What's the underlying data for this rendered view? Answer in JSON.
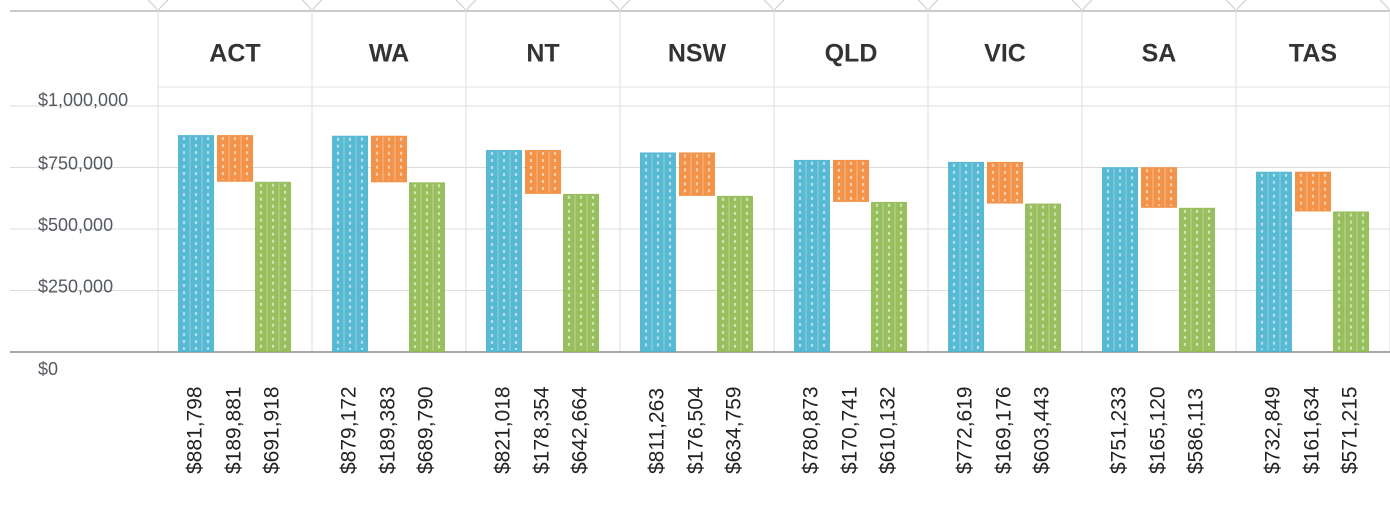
{
  "chart_data": {
    "type": "bar",
    "categories": [
      "ACT",
      "WA",
      "NT",
      "NSW",
      "QLD",
      "VIC",
      "SA",
      "TAS"
    ],
    "series": [
      {
        "values": [
          881798,
          879172,
          821018,
          811263,
          780873,
          772619,
          751233,
          732849
        ],
        "labels": [
          "$881,798",
          "$879,172",
          "$821,018",
          "$811,263",
          "$780,873",
          "$772,619",
          "$751,233",
          "$732,849"
        ]
      },
      {
        "values": [
          189881,
          189383,
          178354,
          176504,
          170741,
          169176,
          165120,
          161634
        ],
        "labels": [
          "$189,881",
          "$189,383",
          "$178,354",
          "$176,504",
          "$170,741",
          "$169,176",
          "$165,120",
          "$161,634"
        ]
      },
      {
        "values": [
          691918,
          689790,
          642664,
          634759,
          610132,
          603443,
          586113,
          571215
        ],
        "labels": [
          "$691,918",
          "$689,790",
          "$642,664",
          "$634,759",
          "$610,132",
          "$603,443",
          "$586,113",
          "$571,215"
        ]
      }
    ],
    "yticks": [
      "$0",
      "$250,000",
      "$500,000",
      "$750,000",
      "$1,000,000"
    ],
    "ylim": [
      0,
      1000000
    ],
    "grid": true,
    "colors": {
      "series1": "#4ab3cf",
      "series2": "#f28a3a",
      "series3": "#8fba4f"
    }
  }
}
